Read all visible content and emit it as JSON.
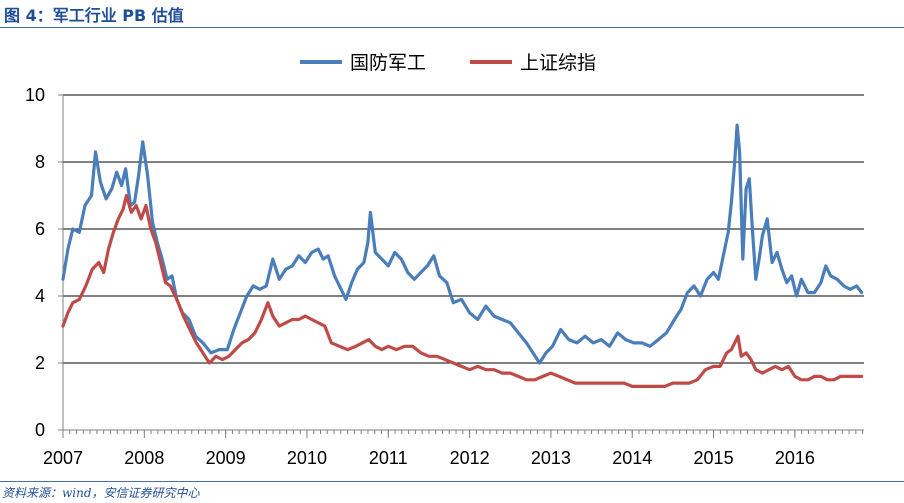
{
  "header": {
    "figure_title": "图 4：军工行业 PB 估值"
  },
  "footer": {
    "source": "资料来源：wind，安信证券研究中心"
  },
  "colors": {
    "defense": "#4a7ebb",
    "sse": "#be4b48",
    "axis": "#808080",
    "title": "#1f4e96"
  },
  "chart_data": {
    "type": "line",
    "title": "军工行业 PB 估值",
    "xlabel": "",
    "ylabel": "",
    "ylim": [
      0,
      10
    ],
    "y_ticks": [
      "0",
      "2",
      "4",
      "6",
      "8",
      "10"
    ],
    "x_ticks": [
      "2007",
      "2008",
      "2009",
      "2010",
      "2011",
      "2012",
      "2013",
      "2014",
      "2015",
      "2016"
    ],
    "x_range": [
      2007.0,
      2016.85
    ],
    "legend_position": "top",
    "series": [
      {
        "name": "国防军工",
        "color": "#4a7ebb",
        "points": [
          [
            2007.0,
            4.5
          ],
          [
            2007.06,
            5.4
          ],
          [
            2007.12,
            6.0
          ],
          [
            2007.2,
            5.9
          ],
          [
            2007.27,
            6.7
          ],
          [
            2007.35,
            7.0
          ],
          [
            2007.4,
            8.3
          ],
          [
            2007.46,
            7.4
          ],
          [
            2007.53,
            6.9
          ],
          [
            2007.6,
            7.2
          ],
          [
            2007.66,
            7.7
          ],
          [
            2007.72,
            7.3
          ],
          [
            2007.77,
            7.8
          ],
          [
            2007.83,
            6.7
          ],
          [
            2007.88,
            6.8
          ],
          [
            2007.93,
            7.6
          ],
          [
            2007.98,
            8.6
          ],
          [
            2008.04,
            7.6
          ],
          [
            2008.1,
            6.2
          ],
          [
            2008.16,
            5.6
          ],
          [
            2008.22,
            5.1
          ],
          [
            2008.28,
            4.5
          ],
          [
            2008.34,
            4.6
          ],
          [
            2008.4,
            3.9
          ],
          [
            2008.47,
            3.5
          ],
          [
            2008.55,
            3.3
          ],
          [
            2008.63,
            2.8
          ],
          [
            2008.72,
            2.6
          ],
          [
            2008.82,
            2.3
          ],
          [
            2008.92,
            2.4
          ],
          [
            2009.02,
            2.4
          ],
          [
            2009.1,
            3.0
          ],
          [
            2009.18,
            3.5
          ],
          [
            2009.26,
            4.0
          ],
          [
            2009.34,
            4.3
          ],
          [
            2009.42,
            4.2
          ],
          [
            2009.5,
            4.3
          ],
          [
            2009.58,
            5.1
          ],
          [
            2009.66,
            4.5
          ],
          [
            2009.74,
            4.8
          ],
          [
            2009.82,
            4.9
          ],
          [
            2009.9,
            5.2
          ],
          [
            2009.98,
            5.0
          ],
          [
            2010.06,
            5.3
          ],
          [
            2010.14,
            5.4
          ],
          [
            2010.2,
            5.1
          ],
          [
            2010.26,
            5.2
          ],
          [
            2010.34,
            4.6
          ],
          [
            2010.42,
            4.2
          ],
          [
            2010.48,
            3.9
          ],
          [
            2010.55,
            4.4
          ],
          [
            2010.62,
            4.8
          ],
          [
            2010.7,
            5.0
          ],
          [
            2010.75,
            5.6
          ],
          [
            2010.78,
            6.5
          ],
          [
            2010.84,
            5.3
          ],
          [
            2010.92,
            5.1
          ],
          [
            2011.0,
            4.9
          ],
          [
            2011.08,
            5.3
          ],
          [
            2011.16,
            5.1
          ],
          [
            2011.24,
            4.7
          ],
          [
            2011.32,
            4.5
          ],
          [
            2011.4,
            4.7
          ],
          [
            2011.48,
            4.9
          ],
          [
            2011.56,
            5.2
          ],
          [
            2011.63,
            4.6
          ],
          [
            2011.72,
            4.4
          ],
          [
            2011.8,
            3.8
          ],
          [
            2011.9,
            3.9
          ],
          [
            2012.0,
            3.5
          ],
          [
            2012.1,
            3.3
          ],
          [
            2012.2,
            3.7
          ],
          [
            2012.3,
            3.4
          ],
          [
            2012.4,
            3.3
          ],
          [
            2012.5,
            3.2
          ],
          [
            2012.6,
            2.9
          ],
          [
            2012.7,
            2.6
          ],
          [
            2012.78,
            2.3
          ],
          [
            2012.86,
            2.0
          ],
          [
            2012.94,
            2.3
          ],
          [
            2013.02,
            2.5
          ],
          [
            2013.12,
            3.0
          ],
          [
            2013.22,
            2.7
          ],
          [
            2013.32,
            2.6
          ],
          [
            2013.42,
            2.8
          ],
          [
            2013.52,
            2.6
          ],
          [
            2013.62,
            2.7
          ],
          [
            2013.72,
            2.5
          ],
          [
            2013.82,
            2.9
          ],
          [
            2013.92,
            2.7
          ],
          [
            2014.02,
            2.6
          ],
          [
            2014.12,
            2.6
          ],
          [
            2014.22,
            2.5
          ],
          [
            2014.32,
            2.7
          ],
          [
            2014.42,
            2.9
          ],
          [
            2014.52,
            3.3
          ],
          [
            2014.6,
            3.6
          ],
          [
            2014.68,
            4.1
          ],
          [
            2014.76,
            4.3
          ],
          [
            2014.84,
            4.0
          ],
          [
            2014.92,
            4.5
          ],
          [
            2015.0,
            4.7
          ],
          [
            2015.06,
            4.5
          ],
          [
            2015.12,
            5.2
          ],
          [
            2015.18,
            5.9
          ],
          [
            2015.22,
            6.8
          ],
          [
            2015.26,
            8.0
          ],
          [
            2015.29,
            9.1
          ],
          [
            2015.32,
            8.3
          ],
          [
            2015.36,
            5.1
          ],
          [
            2015.4,
            7.2
          ],
          [
            2015.44,
            7.5
          ],
          [
            2015.48,
            5.9
          ],
          [
            2015.52,
            4.5
          ],
          [
            2015.56,
            5.1
          ],
          [
            2015.6,
            5.8
          ],
          [
            2015.66,
            6.3
          ],
          [
            2015.72,
            5.0
          ],
          [
            2015.78,
            5.3
          ],
          [
            2015.84,
            4.8
          ],
          [
            2015.9,
            4.4
          ],
          [
            2015.96,
            4.6
          ],
          [
            2016.02,
            4.0
          ],
          [
            2016.08,
            4.5
          ],
          [
            2016.16,
            4.1
          ],
          [
            2016.24,
            4.1
          ],
          [
            2016.32,
            4.4
          ],
          [
            2016.38,
            4.9
          ],
          [
            2016.44,
            4.6
          ],
          [
            2016.52,
            4.5
          ],
          [
            2016.6,
            4.3
          ],
          [
            2016.68,
            4.2
          ],
          [
            2016.76,
            4.3
          ],
          [
            2016.82,
            4.1
          ]
        ]
      },
      {
        "name": "上证综指",
        "color": "#be4b48",
        "points": [
          [
            2007.0,
            3.1
          ],
          [
            2007.06,
            3.5
          ],
          [
            2007.12,
            3.8
          ],
          [
            2007.2,
            3.9
          ],
          [
            2007.28,
            4.3
          ],
          [
            2007.36,
            4.8
          ],
          [
            2007.44,
            5.0
          ],
          [
            2007.5,
            4.7
          ],
          [
            2007.56,
            5.4
          ],
          [
            2007.62,
            5.9
          ],
          [
            2007.68,
            6.3
          ],
          [
            2007.74,
            6.6
          ],
          [
            2007.78,
            7.0
          ],
          [
            2007.84,
            6.5
          ],
          [
            2007.9,
            6.7
          ],
          [
            2007.96,
            6.3
          ],
          [
            2008.02,
            6.7
          ],
          [
            2008.08,
            6.0
          ],
          [
            2008.14,
            5.6
          ],
          [
            2008.2,
            5.0
          ],
          [
            2008.26,
            4.4
          ],
          [
            2008.32,
            4.3
          ],
          [
            2008.4,
            3.9
          ],
          [
            2008.48,
            3.4
          ],
          [
            2008.56,
            3.0
          ],
          [
            2008.64,
            2.6
          ],
          [
            2008.72,
            2.3
          ],
          [
            2008.8,
            2.0
          ],
          [
            2008.88,
            2.2
          ],
          [
            2008.96,
            2.1
          ],
          [
            2009.04,
            2.2
          ],
          [
            2009.12,
            2.4
          ],
          [
            2009.2,
            2.6
          ],
          [
            2009.28,
            2.7
          ],
          [
            2009.36,
            2.9
          ],
          [
            2009.44,
            3.3
          ],
          [
            2009.52,
            3.8
          ],
          [
            2009.58,
            3.4
          ],
          [
            2009.66,
            3.1
          ],
          [
            2009.74,
            3.2
          ],
          [
            2009.82,
            3.3
          ],
          [
            2009.9,
            3.3
          ],
          [
            2009.98,
            3.4
          ],
          [
            2010.06,
            3.3
          ],
          [
            2010.14,
            3.2
          ],
          [
            2010.22,
            3.1
          ],
          [
            2010.3,
            2.6
          ],
          [
            2010.4,
            2.5
          ],
          [
            2010.5,
            2.4
          ],
          [
            2010.6,
            2.5
          ],
          [
            2010.68,
            2.6
          ],
          [
            2010.76,
            2.7
          ],
          [
            2010.84,
            2.5
          ],
          [
            2010.92,
            2.4
          ],
          [
            2011.0,
            2.5
          ],
          [
            2011.1,
            2.4
          ],
          [
            2011.2,
            2.5
          ],
          [
            2011.3,
            2.5
          ],
          [
            2011.4,
            2.3
          ],
          [
            2011.5,
            2.2
          ],
          [
            2011.6,
            2.2
          ],
          [
            2011.7,
            2.1
          ],
          [
            2011.8,
            2.0
          ],
          [
            2011.9,
            1.9
          ],
          [
            2012.0,
            1.8
          ],
          [
            2012.1,
            1.9
          ],
          [
            2012.2,
            1.8
          ],
          [
            2012.3,
            1.8
          ],
          [
            2012.4,
            1.7
          ],
          [
            2012.5,
            1.7
          ],
          [
            2012.6,
            1.6
          ],
          [
            2012.7,
            1.5
          ],
          [
            2012.8,
            1.5
          ],
          [
            2012.9,
            1.6
          ],
          [
            2013.0,
            1.7
          ],
          [
            2013.1,
            1.6
          ],
          [
            2013.2,
            1.5
          ],
          [
            2013.3,
            1.4
          ],
          [
            2013.4,
            1.4
          ],
          [
            2013.5,
            1.4
          ],
          [
            2013.6,
            1.4
          ],
          [
            2013.7,
            1.4
          ],
          [
            2013.8,
            1.4
          ],
          [
            2013.9,
            1.4
          ],
          [
            2014.0,
            1.3
          ],
          [
            2014.1,
            1.3
          ],
          [
            2014.2,
            1.3
          ],
          [
            2014.3,
            1.3
          ],
          [
            2014.4,
            1.3
          ],
          [
            2014.5,
            1.4
          ],
          [
            2014.6,
            1.4
          ],
          [
            2014.7,
            1.4
          ],
          [
            2014.8,
            1.5
          ],
          [
            2014.9,
            1.8
          ],
          [
            2015.0,
            1.9
          ],
          [
            2015.08,
            1.9
          ],
          [
            2015.16,
            2.3
          ],
          [
            2015.22,
            2.4
          ],
          [
            2015.26,
            2.6
          ],
          [
            2015.3,
            2.8
          ],
          [
            2015.34,
            2.2
          ],
          [
            2015.4,
            2.3
          ],
          [
            2015.46,
            2.1
          ],
          [
            2015.52,
            1.8
          ],
          [
            2015.6,
            1.7
          ],
          [
            2015.68,
            1.8
          ],
          [
            2015.76,
            1.9
          ],
          [
            2015.84,
            1.8
          ],
          [
            2015.92,
            1.9
          ],
          [
            2016.0,
            1.6
          ],
          [
            2016.08,
            1.5
          ],
          [
            2016.16,
            1.5
          ],
          [
            2016.24,
            1.6
          ],
          [
            2016.32,
            1.6
          ],
          [
            2016.4,
            1.5
          ],
          [
            2016.48,
            1.5
          ],
          [
            2016.56,
            1.6
          ],
          [
            2016.64,
            1.6
          ],
          [
            2016.72,
            1.6
          ],
          [
            2016.82,
            1.6
          ]
        ]
      }
    ]
  }
}
